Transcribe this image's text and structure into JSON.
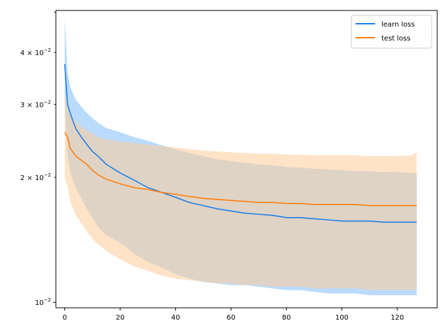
{
  "chart_data": {
    "type": "line",
    "title": "",
    "xlabel": "",
    "ylabel": "",
    "yscale": "log",
    "xlim": [
      -3.2,
      134.4
    ],
    "ylim": [
      0.0097,
      0.0505
    ],
    "x_ticks": [
      0,
      20,
      40,
      60,
      80,
      100,
      120
    ],
    "x_tick_labels": [
      "0",
      "20",
      "40",
      "60",
      "80",
      "100",
      "120"
    ],
    "y_major_ticks": [
      0.01
    ],
    "y_major_tick_labels": [
      "10^-2"
    ],
    "y_minor_ticks": [
      0.02,
      0.03,
      0.04
    ],
    "y_minor_tick_labels": [
      "2 × 10^-2",
      "3 × 10^-2",
      "4 × 10^-2"
    ],
    "y_unlabeled_ticks": [
      0.05
    ],
    "grid": false,
    "legend": {
      "placement": "top-right"
    },
    "series": [
      {
        "name": "learn loss",
        "color": "#1f7fe8",
        "band_color": "#7fbef9",
        "x": [
          0,
          1,
          2,
          4,
          6,
          8,
          10,
          12,
          15,
          20,
          25,
          30,
          35,
          40,
          45,
          50,
          55,
          60,
          65,
          70,
          75,
          80,
          85,
          90,
          95,
          100,
          105,
          110,
          115,
          120,
          125,
          127
        ],
        "mean": [
          0.0375,
          0.03,
          0.0285,
          0.0262,
          0.025,
          0.024,
          0.0231,
          0.0225,
          0.0215,
          0.0205,
          0.0197,
          0.0189,
          0.0184,
          0.0179,
          0.0174,
          0.0171,
          0.0168,
          0.0166,
          0.0164,
          0.0163,
          0.0162,
          0.016,
          0.016,
          0.0159,
          0.0158,
          0.0157,
          0.0157,
          0.0157,
          0.0156,
          0.0156,
          0.0156,
          0.0156
        ],
        "upper": [
          0.0485,
          0.036,
          0.033,
          0.0308,
          0.0296,
          0.0286,
          0.0278,
          0.0271,
          0.0263,
          0.0257,
          0.025,
          0.0245,
          0.0239,
          0.0234,
          0.0229,
          0.0225,
          0.0221,
          0.0219,
          0.0217,
          0.0215,
          0.0214,
          0.0212,
          0.0211,
          0.021,
          0.0209,
          0.0208,
          0.0207,
          0.0207,
          0.0206,
          0.0206,
          0.0205,
          0.0205
        ],
        "lower": [
          0.03,
          0.0225,
          0.0205,
          0.0188,
          0.0178,
          0.0168,
          0.016,
          0.0152,
          0.0145,
          0.0139,
          0.0131,
          0.0125,
          0.0121,
          0.0117,
          0.0114,
          0.0112,
          0.0111,
          0.011,
          0.011,
          0.0109,
          0.0108,
          0.0107,
          0.0107,
          0.0106,
          0.0105,
          0.0105,
          0.0105,
          0.0104,
          0.0104,
          0.0104,
          0.0104,
          0.0104
        ]
      },
      {
        "name": "test loss",
        "color": "#ff7f0e",
        "band_color": "#ffcc99",
        "x": [
          0,
          1,
          2,
          4,
          6,
          8,
          10,
          12,
          15,
          20,
          25,
          30,
          35,
          40,
          45,
          50,
          55,
          60,
          65,
          70,
          75,
          80,
          85,
          90,
          95,
          100,
          105,
          110,
          115,
          120,
          125,
          127
        ],
        "mean": [
          0.0257,
          0.025,
          0.0235,
          0.0225,
          0.022,
          0.0215,
          0.0208,
          0.0203,
          0.0198,
          0.0193,
          0.0189,
          0.0187,
          0.0184,
          0.0182,
          0.018,
          0.0178,
          0.0177,
          0.0176,
          0.0175,
          0.0174,
          0.0174,
          0.0173,
          0.0173,
          0.0172,
          0.0172,
          0.0172,
          0.0172,
          0.0171,
          0.0171,
          0.0171,
          0.0171,
          0.0171
        ],
        "upper": [
          0.032,
          0.03,
          0.0285,
          0.0272,
          0.0265,
          0.026,
          0.0255,
          0.025,
          0.0247,
          0.0244,
          0.0242,
          0.024,
          0.0238,
          0.0236,
          0.0234,
          0.0232,
          0.0231,
          0.023,
          0.0229,
          0.0228,
          0.0228,
          0.0227,
          0.0227,
          0.0226,
          0.0226,
          0.0226,
          0.0226,
          0.0225,
          0.0225,
          0.0225,
          0.0226,
          0.023
        ],
        "lower": [
          0.02,
          0.019,
          0.0175,
          0.0162,
          0.0155,
          0.0148,
          0.0142,
          0.0138,
          0.0133,
          0.0127,
          0.0122,
          0.0119,
          0.0116,
          0.0114,
          0.0113,
          0.0112,
          0.0111,
          0.0111,
          0.011,
          0.011,
          0.0109,
          0.0109,
          0.0109,
          0.0108,
          0.0108,
          0.0108,
          0.0108,
          0.0107,
          0.0107,
          0.0107,
          0.0107,
          0.0107
        ]
      }
    ]
  }
}
